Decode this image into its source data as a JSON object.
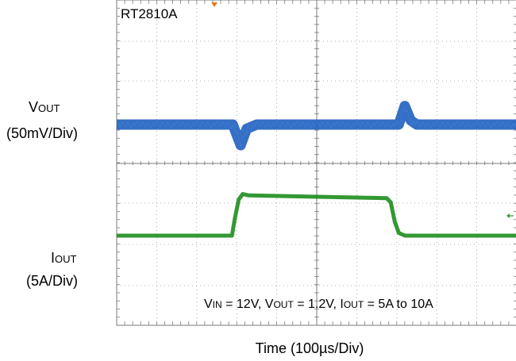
{
  "chart_data": {
    "type": "line",
    "title": "",
    "device": "RT2810A",
    "xlabel": "Time (100µs/Div)",
    "x_divisions": 10,
    "grid": true,
    "series": [
      {
        "name": "VOUT",
        "label_main": "V",
        "label_sub": "OUT",
        "scale": "(50mV/Div)",
        "color": "#1f5fc0",
        "x_div": [
          0,
          2.9,
          3.0,
          3.1,
          3.25,
          3.5,
          7.05,
          7.2,
          7.35,
          7.5,
          10
        ],
        "y_div": [
          0,
          0,
          -0.25,
          -0.5,
          -0.1,
          0,
          0,
          0.45,
          0.1,
          0,
          0
        ]
      },
      {
        "name": "IOUT",
        "label_main": "I",
        "label_sub": "OUT",
        "scale": "(5A/Div)",
        "color": "#1e8c1e",
        "x_div": [
          0,
          2.88,
          2.95,
          3.05,
          3.15,
          3.3,
          6.75,
          6.85,
          6.95,
          7.05,
          7.2,
          10
        ],
        "y_div": [
          0,
          0,
          0.6,
          1.3,
          1.5,
          1.45,
          1.35,
          1.2,
          0.5,
          0.1,
          0,
          0
        ]
      }
    ],
    "conditions": [
      {
        "main": "V",
        "sub": "IN",
        "value": " = 12V, "
      },
      {
        "main": "V",
        "sub": "OUT",
        "value": " = 1.2V, "
      },
      {
        "main": "I",
        "sub": "OUT",
        "value": " = 5A to 10A"
      }
    ]
  }
}
